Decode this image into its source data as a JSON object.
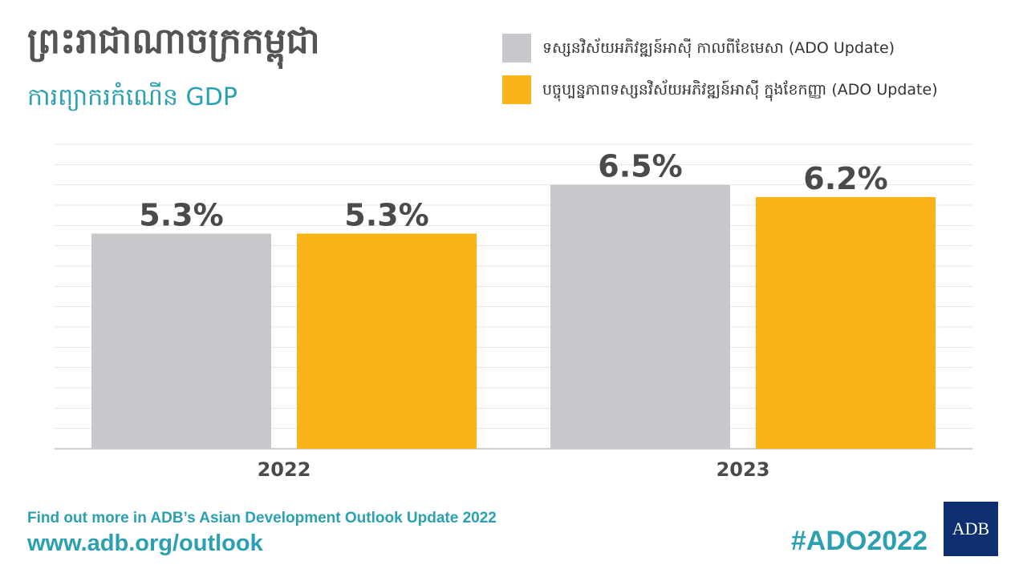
{
  "header": {
    "title": "ព្រះរាជាណាចក្រកម្ពុជា",
    "subtitle": "ការព្យាករកំណើន GDP"
  },
  "legend": {
    "items": [
      {
        "label": "ទស្សនវិស័យអភិវឌ្ឍន៍អាស៊ី កាលពីខែមេសា (ADO Update)",
        "color": "#c6c8cb"
      },
      {
        "label": "បច្ចុប្បន្នភាពទស្សនវិស័យអភិវឌ្ឍន៍អាស៊ី ក្នុងខែកញ្ញា (ADO Update)",
        "color": "#fbb418"
      }
    ]
  },
  "chart_data": {
    "type": "bar",
    "categories": [
      "2022",
      "2023"
    ],
    "series": [
      {
        "name": "ទស្សនវិស័យអភិវឌ្ឍន៍អាស៊ី កាលពីខែមេសា (ADO Update)",
        "values": [
          5.3,
          6.5
        ],
        "color": "#c6c8cb"
      },
      {
        "name": "បច្ចុប្បន្នភាពទស្សនវិស័យអភិវឌ្ឍន៍អាស៊ី ក្នុងខែកញ្ញា (ADO Update)",
        "values": [
          5.3,
          6.2
        ],
        "color": "#fbb418"
      }
    ],
    "data_labels": [
      [
        "5.3%",
        "6.5%"
      ],
      [
        "5.3%",
        "6.2%"
      ]
    ],
    "ylim": [
      0,
      7.5
    ],
    "grid": true,
    "legend_position": "top-right"
  },
  "footer": {
    "line1": "Find out more in ADB’s Asian Development Outlook Update 2022",
    "line2": "www.adb.org/outlook",
    "hashtag": "#ADO2022",
    "logo_text": "ADB",
    "accent_color": "#2aa0b2",
    "logo_color": "#0f2f73"
  }
}
